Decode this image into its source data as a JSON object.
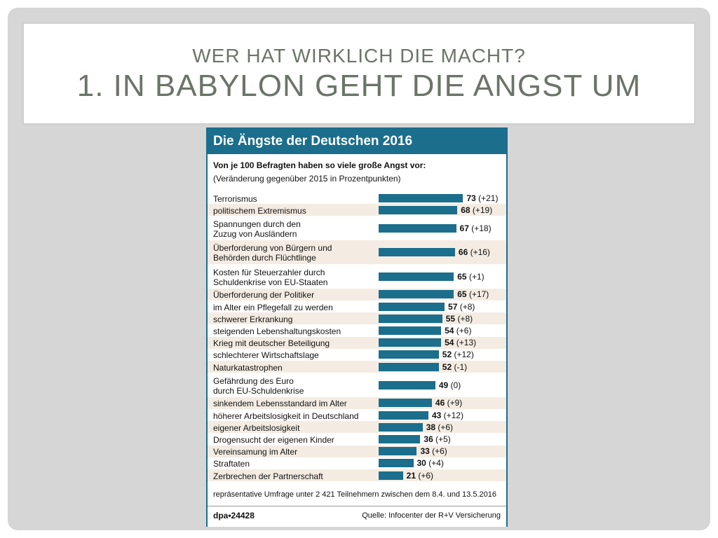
{
  "slide": {
    "title_line1": "WER HAT WIRKLICH DIE MACHT?",
    "title_line2": "1. IN BABYLON GEHT DIE ANGST UM"
  },
  "chart_data": {
    "type": "bar",
    "orientation": "horizontal",
    "title": "Die Ängste der Deutschen 2016",
    "subtitle": "Von je 100 Befragten haben so viele große Angst vor:",
    "subtitle2": "(Veränderung gegenüber 2015 in Prozentpunkten)",
    "footnote": "repräsentative Umfrage unter 2 421 Teilnehmern zwischen dem 8.4. und 13.5.2016",
    "logo": "dpa•24428",
    "source": "Quelle: Infocenter der R+V Versicherung",
    "xlim": [
      0,
      100
    ],
    "bar_color": "#1b6e8c",
    "categories": [
      "Terrorismus",
      "politischem Extremismus",
      "Spannungen durch den\nZuzug von Ausländern",
      "Überforderung von Bürgern und\nBehörden durch Flüchtlinge",
      "Kosten für Steuerzahler durch\nSchuldenkrise von EU-Staaten",
      "Überforderung der Politiker",
      "im Alter ein Pflegefall zu werden",
      "schwerer Erkrankung",
      "steigenden Lebenshaltungskosten",
      "Krieg mit deutscher Beteiligung",
      "schlechterer Wirtschaftslage",
      "Naturkatastrophen",
      "Gefährdung des Euro\ndurch EU-Schuldenkrise",
      "sinkendem Lebensstandard im Alter",
      "höherer Arbeitslosigkeit in Deutschland",
      "eigener Arbeitslosigkeit",
      "Drogensucht der eigenen Kinder",
      "Vereinsamung im Alter",
      "Straftaten",
      "Zerbrechen der Partnerschaft"
    ],
    "values": [
      73,
      68,
      67,
      66,
      65,
      65,
      57,
      55,
      54,
      54,
      52,
      52,
      49,
      46,
      43,
      38,
      36,
      33,
      30,
      21
    ],
    "changes": [
      "(+21)",
      "(+19)",
      "(+18)",
      "(+16)",
      "(+1)",
      "(+17)",
      "(+8)",
      "(+8)",
      "(+6)",
      "(+13)",
      "(+12)",
      "(-1)",
      "(0)",
      "(+9)",
      "(+12)",
      "(+6)",
      "(+5)",
      "(+6)",
      "(+4)",
      "(+6)"
    ]
  }
}
